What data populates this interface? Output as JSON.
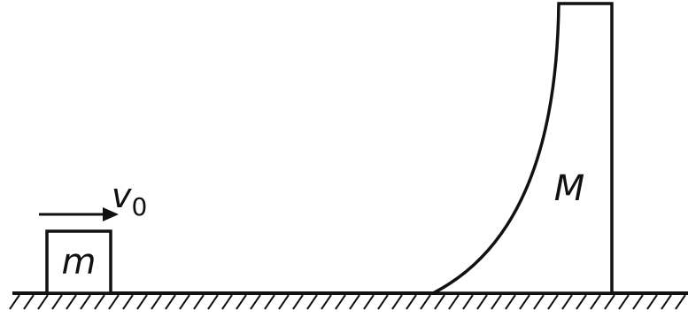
{
  "labels": {
    "small_mass": "m",
    "large_mass": "M",
    "velocity_symbol": "v",
    "velocity_subscript": "0"
  },
  "colors": {
    "ink": "#111111",
    "background": "#ffffff"
  }
}
